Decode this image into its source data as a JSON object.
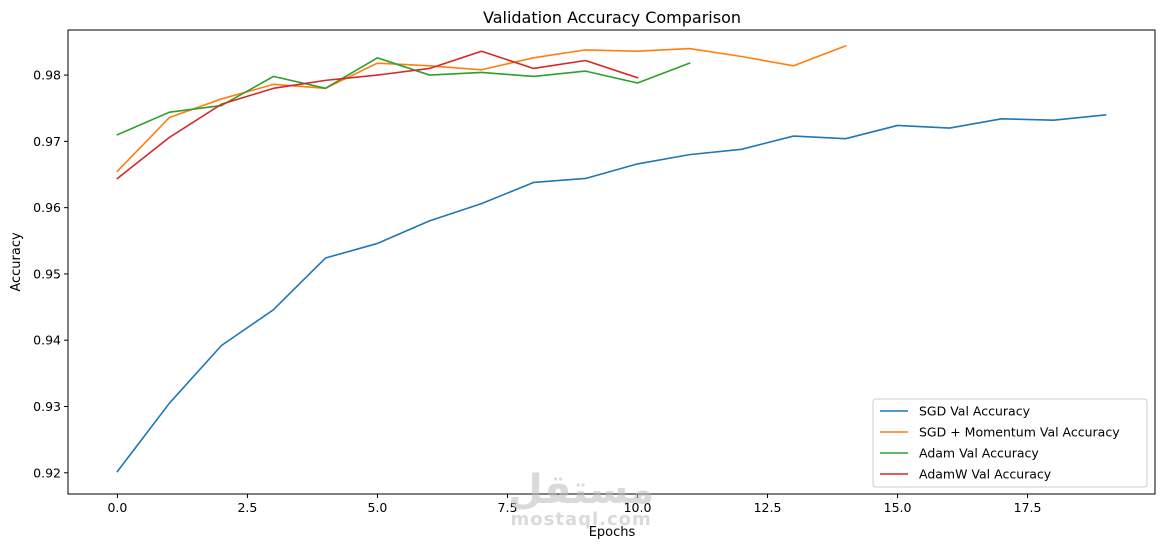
{
  "chart_data": {
    "type": "line",
    "title": "Validation Accuracy Comparison",
    "xlabel": "Epochs",
    "ylabel": "Accuracy",
    "xlim": [
      -0.95,
      19.95
    ],
    "ylim": [
      0.9168,
      0.9868
    ],
    "xticks": [
      0.0,
      2.5,
      5.0,
      7.5,
      10.0,
      12.5,
      15.0,
      17.5
    ],
    "xtick_labels": [
      "0.0",
      "2.5",
      "5.0",
      "7.5",
      "10.0",
      "12.5",
      "15.0",
      "17.5"
    ],
    "yticks": [
      0.92,
      0.93,
      0.94,
      0.95,
      0.96,
      0.97,
      0.98
    ],
    "ytick_labels": [
      "0.92",
      "0.93",
      "0.94",
      "0.95",
      "0.96",
      "0.97",
      "0.98"
    ],
    "grid": false,
    "legend_position": "lower-right",
    "series": [
      {
        "name": "SGD Val Accuracy",
        "color": "#1f77b4",
        "x": [
          0,
          1,
          2,
          3,
          4,
          5,
          6,
          7,
          8,
          9,
          10,
          11,
          12,
          13,
          14,
          15,
          16,
          17,
          18,
          19
        ],
        "values": [
          0.9202,
          0.9305,
          0.9392,
          0.9446,
          0.9524,
          0.9546,
          0.958,
          0.9606,
          0.9638,
          0.9644,
          0.9666,
          0.968,
          0.9688,
          0.9708,
          0.9704,
          0.9724,
          0.972,
          0.9734,
          0.9732,
          0.974
        ]
      },
      {
        "name": "SGD + Momentum Val Accuracy",
        "color": "#ff7f0e",
        "x": [
          0,
          1,
          2,
          3,
          4,
          5,
          6,
          7,
          8,
          9,
          10,
          11,
          12,
          13,
          14
        ],
        "values": [
          0.9655,
          0.9736,
          0.9764,
          0.9786,
          0.978,
          0.9818,
          0.9814,
          0.9808,
          0.9826,
          0.9838,
          0.9836,
          0.984,
          0.9828,
          0.9814,
          0.9844
        ]
      },
      {
        "name": "Adam Val Accuracy",
        "color": "#2ca02c",
        "x": [
          0,
          1,
          2,
          3,
          4,
          5,
          6,
          7,
          8,
          9,
          10,
          11
        ],
        "values": [
          0.971,
          0.9744,
          0.9754,
          0.9798,
          0.978,
          0.9826,
          0.98,
          0.9804,
          0.9798,
          0.9806,
          0.9788,
          0.9818
        ]
      },
      {
        "name": "AdamW Val Accuracy",
        "color": "#d62728",
        "x": [
          0,
          1,
          2,
          3,
          4,
          5,
          6,
          7,
          8,
          9,
          10
        ],
        "values": [
          0.9644,
          0.9706,
          0.9756,
          0.978,
          0.9792,
          0.98,
          0.981,
          0.9836,
          0.981,
          0.9822,
          0.9796
        ]
      }
    ]
  },
  "watermark": {
    "arabic": "مستقل",
    "latin": "mostaql.com"
  }
}
